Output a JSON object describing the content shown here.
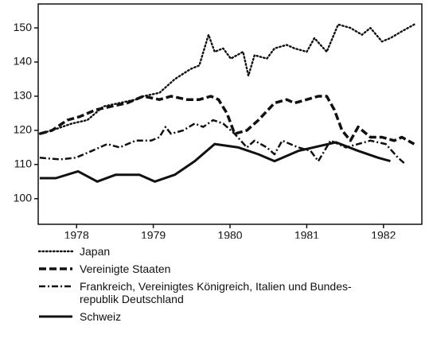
{
  "chart_data": {
    "type": "line",
    "xlim": [
      1977.5,
      1982.5
    ],
    "xticks": [
      1978,
      1979,
      1980,
      1981,
      1982
    ],
    "ylim": [
      92.5,
      157
    ],
    "yticks": [
      100,
      110,
      120,
      130,
      140,
      150
    ],
    "series": [
      {
        "name": "Japan",
        "color": "#111111",
        "line_style": "dotted",
        "x": [
          1977.52,
          1977.68,
          1977.94,
          1978.14,
          1978.35,
          1978.56,
          1978.77,
          1978.87,
          1979.08,
          1979.18,
          1979.28,
          1979.49,
          1979.6,
          1979.72,
          1979.8,
          1979.91,
          1980.01,
          1980.17,
          1980.24,
          1980.32,
          1980.48,
          1980.58,
          1980.74,
          1980.84,
          1981.0,
          1981.1,
          1981.26,
          1981.41,
          1981.57,
          1981.72,
          1981.83,
          1981.98,
          1982.09,
          1982.24,
          1982.4
        ],
        "values": [
          119,
          120,
          122,
          123,
          127,
          128,
          129,
          130,
          131,
          133,
          135,
          138,
          139,
          148,
          143,
          144,
          141,
          143,
          136,
          142,
          141,
          144,
          145,
          144,
          143,
          147,
          143,
          151,
          150,
          148,
          150,
          146,
          147,
          149,
          151
        ]
      },
      {
        "name": "Vereinigte Staaten",
        "color": "#111111",
        "line_style": "dashed",
        "x": [
          1977.52,
          1977.68,
          1977.88,
          1978.04,
          1978.25,
          1978.45,
          1978.66,
          1978.87,
          1979.08,
          1979.23,
          1979.44,
          1979.6,
          1979.75,
          1979.85,
          1979.96,
          1980.06,
          1980.22,
          1980.37,
          1980.58,
          1980.74,
          1980.84,
          1981.0,
          1981.15,
          1981.26,
          1981.36,
          1981.46,
          1981.57,
          1981.67,
          1981.83,
          1981.98,
          1982.14,
          1982.24,
          1982.4
        ],
        "values": [
          119,
          120,
          123,
          124,
          126,
          127,
          128,
          130,
          129,
          130,
          129,
          129,
          130,
          129,
          125,
          119,
          120,
          123,
          128,
          129,
          128,
          129,
          130,
          130,
          126,
          120,
          117,
          121,
          118,
          118,
          117,
          118,
          116
        ]
      },
      {
        "name": "Frankreich, Vereinigtes Königreich, Italien und Bundes-\nrepublik Deutschland",
        "color": "#111111",
        "line_style": "dashdot",
        "x": [
          1977.52,
          1977.78,
          1977.99,
          1978.2,
          1978.4,
          1978.56,
          1978.77,
          1978.97,
          1979.08,
          1979.16,
          1979.23,
          1979.39,
          1979.54,
          1979.65,
          1979.78,
          1979.91,
          1980.06,
          1980.22,
          1980.32,
          1980.48,
          1980.58,
          1980.68,
          1980.89,
          1981.05,
          1981.15,
          1981.31,
          1981.51,
          1981.67,
          1981.83,
          1982.03,
          1982.19,
          1982.29
        ],
        "values": [
          112,
          111.5,
          112,
          114,
          116,
          115,
          117,
          117,
          118,
          121,
          119,
          120,
          122,
          121,
          123,
          122,
          119,
          115,
          117,
          115,
          113,
          117,
          115,
          114,
          111,
          117,
          115,
          116,
          117,
          116,
          112,
          110
        ]
      },
      {
        "name": "Schweiz",
        "color": "#111111",
        "line_style": "solid",
        "x": [
          1977.52,
          1977.73,
          1978.02,
          1978.27,
          1978.51,
          1978.82,
          1979.02,
          1979.28,
          1979.54,
          1979.8,
          1980.11,
          1980.37,
          1980.58,
          1980.89,
          1981.38,
          1981.67,
          1981.93,
          1982.09
        ],
        "values": [
          106,
          106,
          108,
          105,
          107,
          107,
          105,
          107,
          111,
          116,
          115,
          113,
          111,
          114,
          116.5,
          114,
          112,
          111
        ]
      }
    ]
  }
}
